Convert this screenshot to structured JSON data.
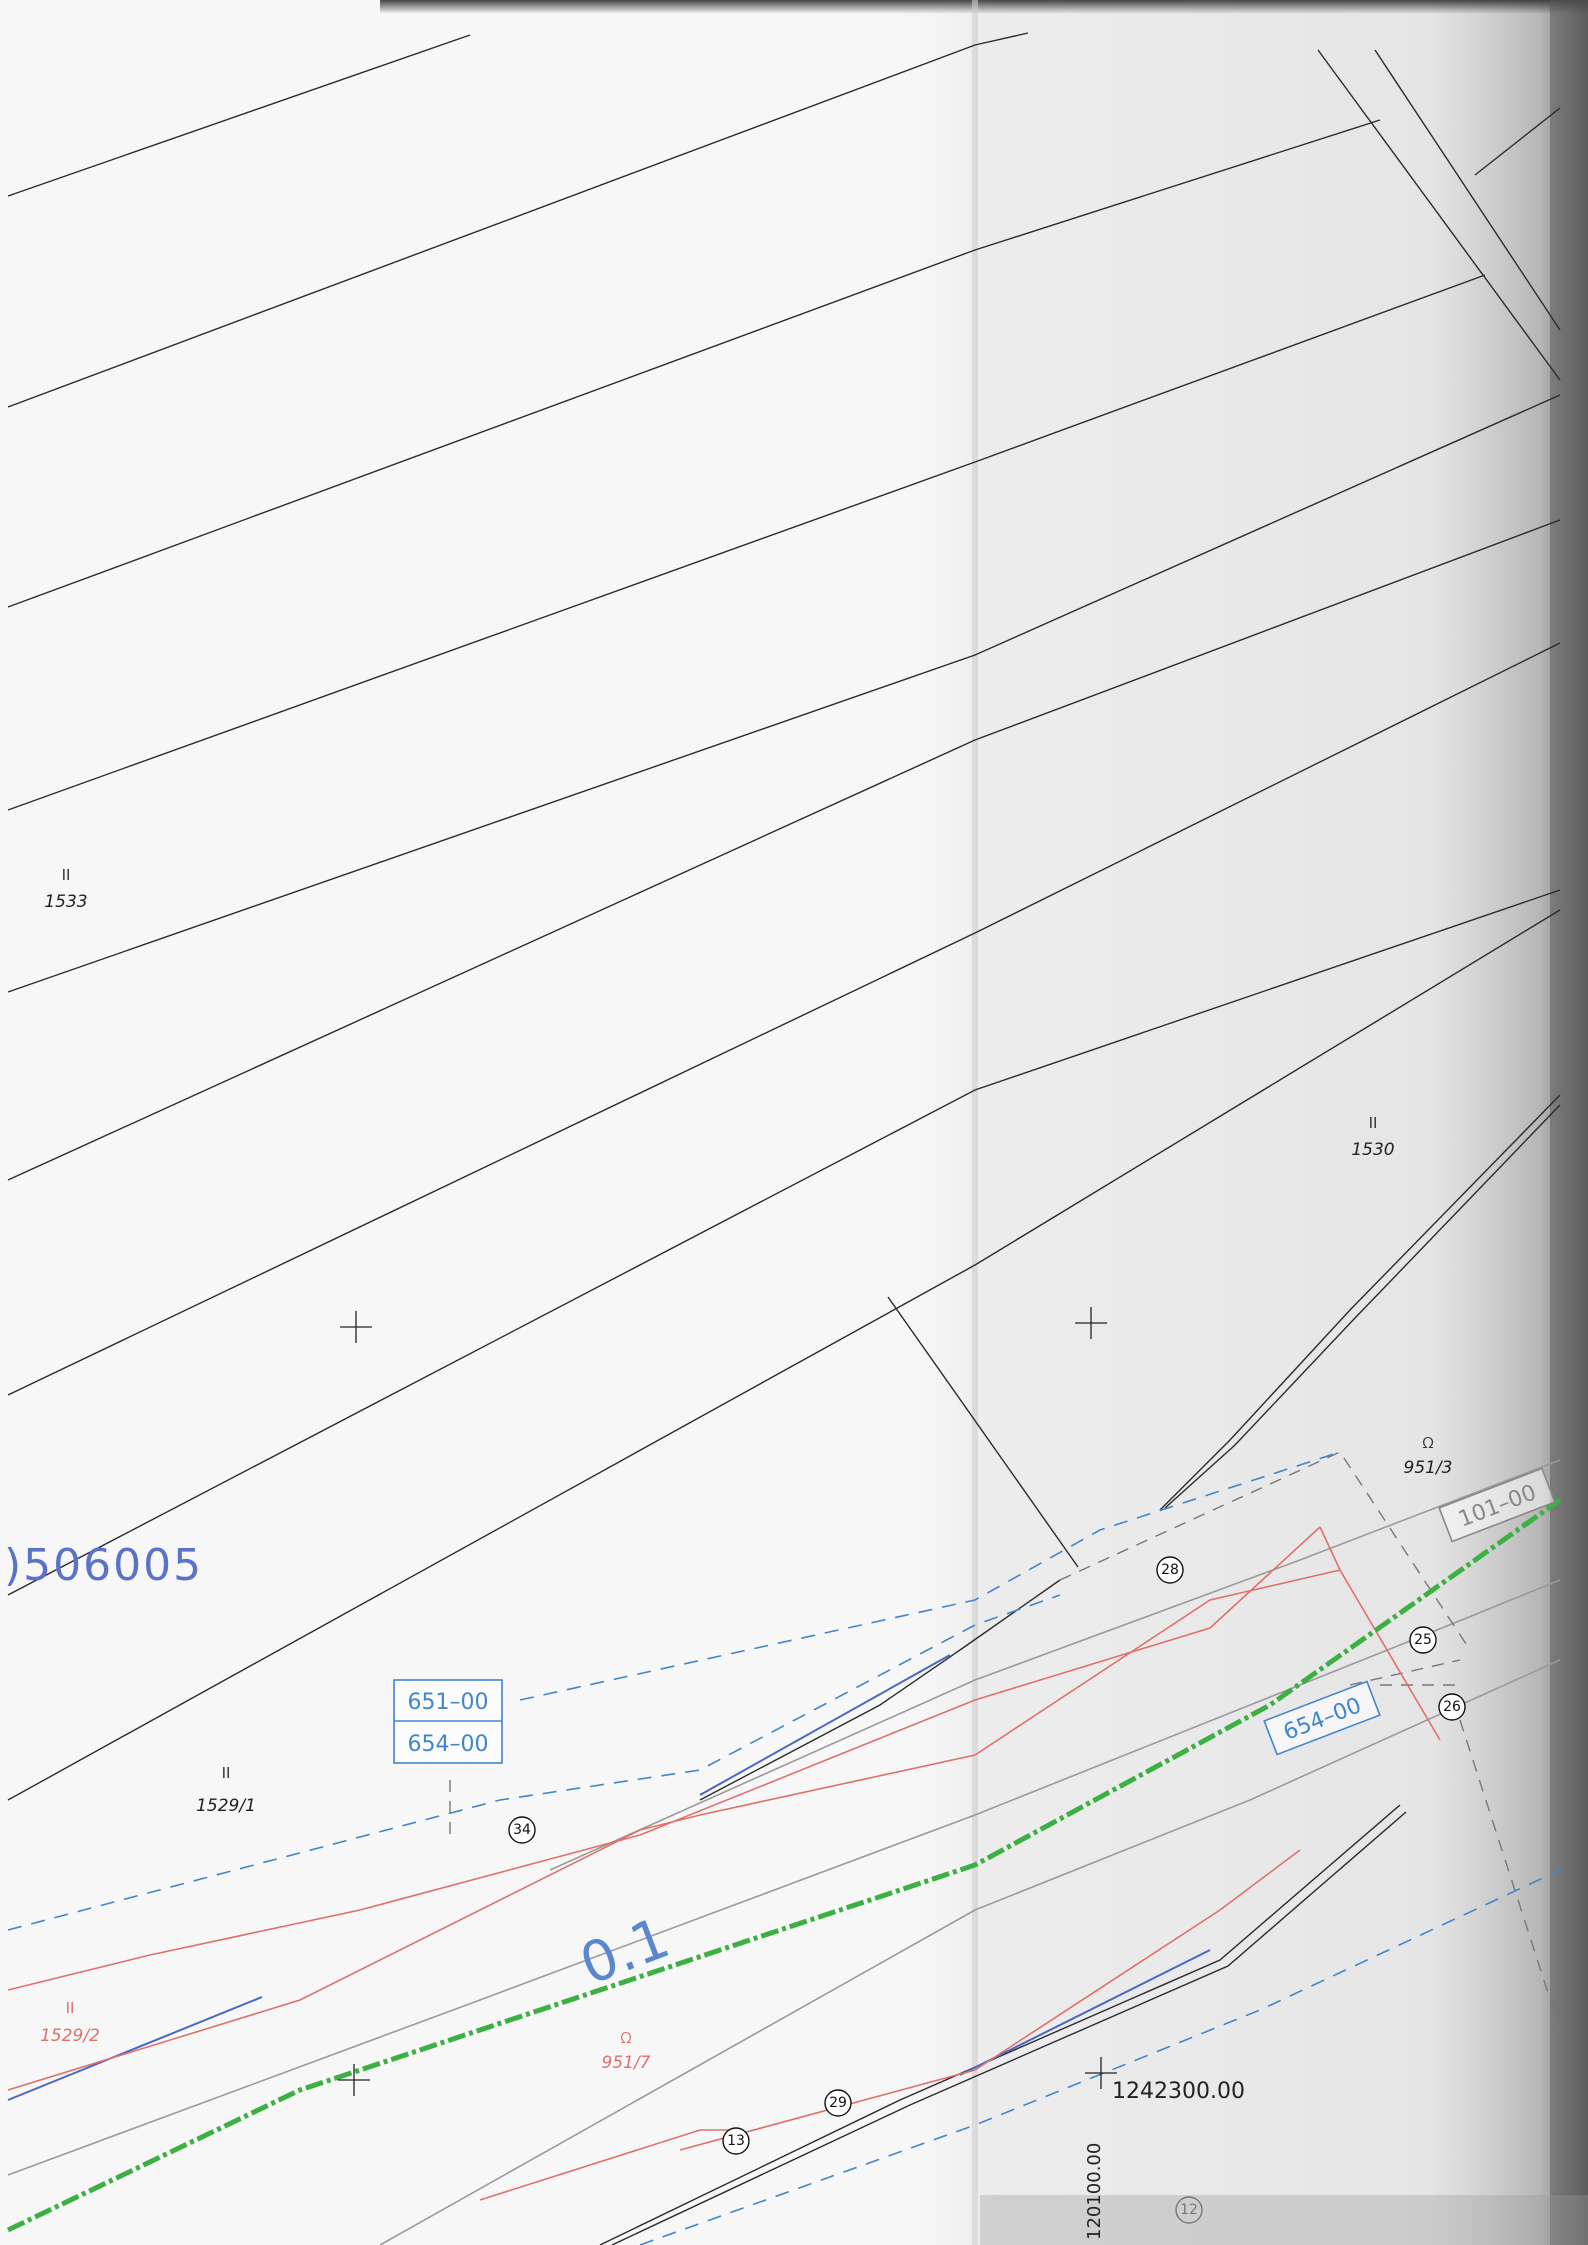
{
  "map": {
    "sheet_id": "506005",
    "sheet_id_prefix": ")",
    "parcels": [
      {
        "class": "II",
        "number": "1533",
        "color": "#222222"
      },
      {
        "class": "II",
        "number": "1530",
        "color": "#222222"
      },
      {
        "class": "II",
        "number": "1529/1",
        "color": "#222222"
      },
      {
        "class": "II",
        "number": "1529/2",
        "color": "#e0706a"
      }
    ],
    "road_parcels": [
      {
        "symbol": "ᘯ",
        "number": "951/3",
        "color": "#333333"
      },
      {
        "symbol": "ᘯ",
        "number": "951/7",
        "color": "#e0706a"
      }
    ],
    "code_boxes": {
      "stacked": [
        "651–00",
        "654–00"
      ],
      "rotated_right": "654–00",
      "rotated_top": "101–00"
    },
    "survey_points": [
      "28",
      "25",
      "26",
      "34",
      "29",
      "13",
      "12"
    ],
    "axis_label_fragment": "0.1",
    "coordinates": {
      "easting": "1242300.00",
      "northing": "120100.00"
    },
    "colors": {
      "parcel_line": "#2b2b2b",
      "planned_line_red": "#e0706a",
      "dashed_blue": "#3f86d0",
      "green_axis": "#3cb043",
      "gray_line": "#9a9a9a",
      "sheet_id": "#5a73c8"
    }
  }
}
